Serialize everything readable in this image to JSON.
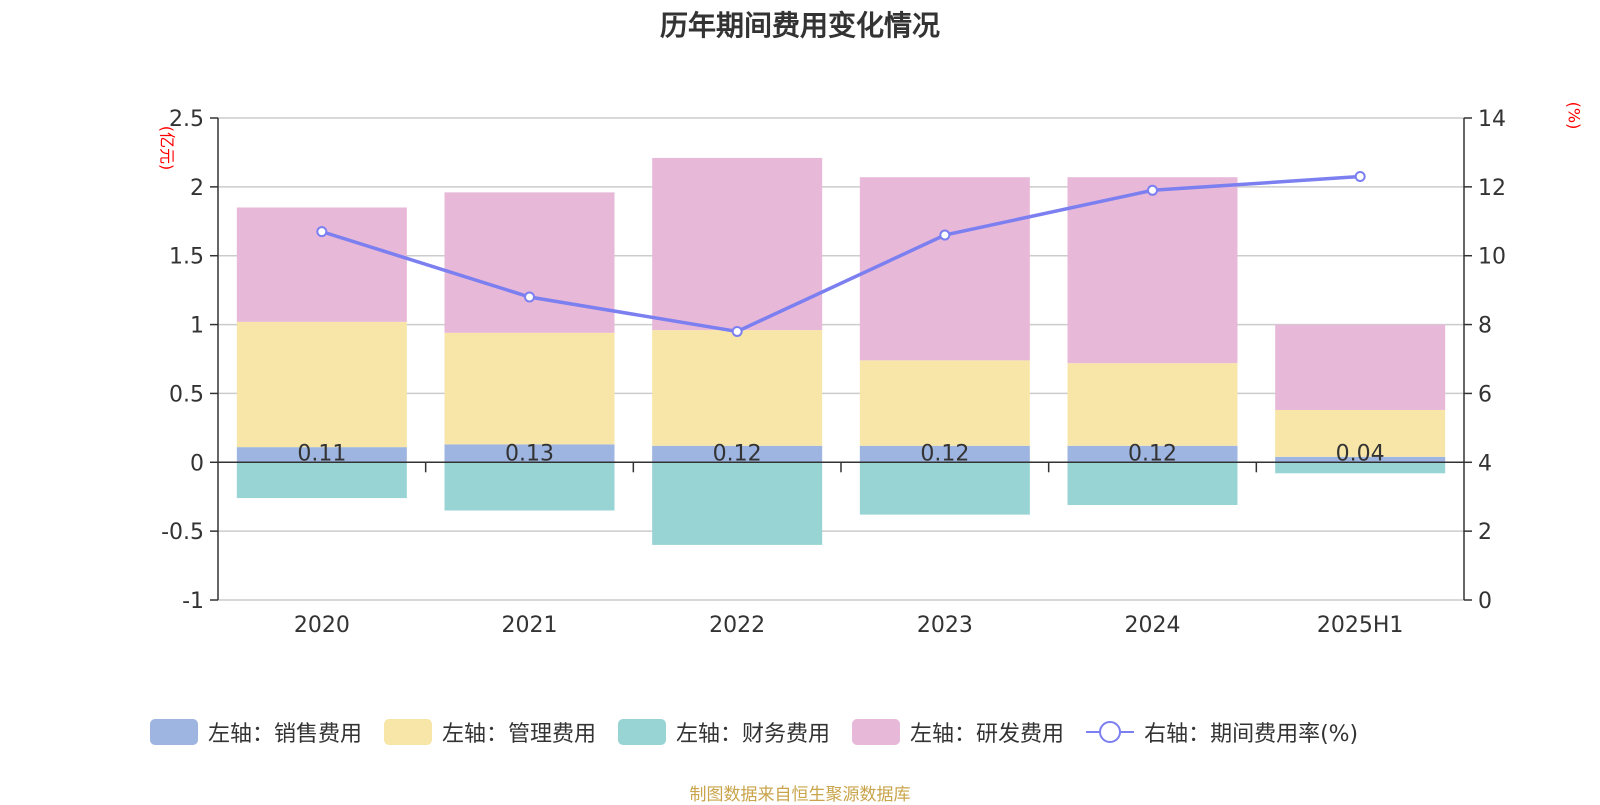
{
  "chart_data": {
    "type": "bar",
    "title": "历年期间费用变化情况",
    "categories": [
      "2020",
      "2021",
      "2022",
      "2023",
      "2024",
      "2025H1"
    ],
    "y_left": {
      "unit": "(亿元)",
      "ticks": [
        "2.5",
        "2",
        "1.5",
        "1",
        "0.5",
        "0",
        "-0.5",
        "-1"
      ],
      "ylim": [
        -1,
        2.5
      ]
    },
    "y_right": {
      "unit": "(%)",
      "ticks": [
        "14",
        "12",
        "10",
        "8",
        "6",
        "4",
        "2",
        "0"
      ],
      "ylim": [
        0,
        14
      ]
    },
    "series": [
      {
        "name": "左轴：销售费用",
        "color": "#9db5e0",
        "values": [
          0.11,
          0.13,
          0.12,
          0.12,
          0.12,
          0.04
        ],
        "labels": [
          "0.11",
          "0.13",
          "0.12",
          "0.12",
          "0.12",
          "0.04"
        ]
      },
      {
        "name": "左轴：管理费用",
        "color": "#f8e6a8",
        "values": [
          0.91,
          0.81,
          0.84,
          0.62,
          0.6,
          0.34
        ]
      },
      {
        "name": "左轴：财务费用",
        "color": "#97d4d3",
        "values": [
          -0.26,
          -0.35,
          -0.6,
          -0.38,
          -0.31,
          -0.08
        ]
      },
      {
        "name": "左轴：研发费用",
        "color": "#e8b8d9",
        "values": [
          0.83,
          1.02,
          1.25,
          1.33,
          1.35,
          0.62
        ]
      },
      {
        "name": "右轴：期间费用率(%)",
        "color": "#7b7ff0",
        "axis": "right",
        "type": "line",
        "values": [
          10.7,
          8.8,
          7.8,
          10.6,
          11.9,
          12.3
        ]
      }
    ],
    "grid": true,
    "legend_position": "bottom"
  },
  "source_note": "制图数据来自恒生聚源数据库"
}
